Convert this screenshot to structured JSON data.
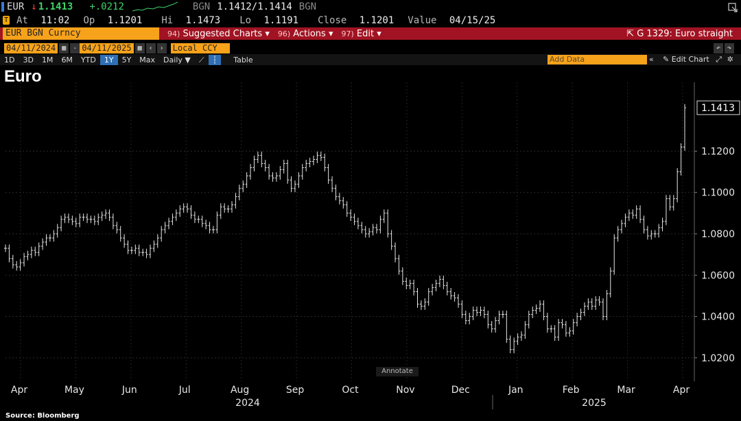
{
  "ticker": {
    "symbol": "EUR",
    "last": "1.1413",
    "change": "+.0212",
    "source": "BGN",
    "bid_ask": "1.1412/1.1414",
    "source2": "BGN"
  },
  "quote": {
    "at_label": "At",
    "at": "11:02",
    "op_label": "Op",
    "op": "1.1201",
    "hi_label": "Hi",
    "hi": "1.1473",
    "lo_label": "Lo",
    "lo": "1.1191",
    "close_label": "Close",
    "close": "1.1201",
    "value_label": "Value",
    "value": "04/15/25"
  },
  "command_bar": {
    "security": "EUR BGN Curncy",
    "menus": [
      {
        "num": "94)",
        "label": "Suggested Charts"
      },
      {
        "num": "96)",
        "label": "Actions"
      },
      {
        "num": "97)",
        "label": "Edit"
      }
    ],
    "chart_title": "G 1329: Euro straight"
  },
  "range": {
    "start": "04/11/2024",
    "end": "04/11/2025",
    "currency": "Local CCY",
    "buttons": [
      "1D",
      "3D",
      "1M",
      "6M",
      "YTD",
      "1Y",
      "5Y",
      "Max"
    ],
    "active": "1Y",
    "frequency": "Daily",
    "table_label": "Table",
    "add_data_placeholder": "Add Data",
    "edit_chart_label": "Edit Chart"
  },
  "colors": {
    "accent": "#f7a21b",
    "bar": "#a11322",
    "series": "#e8e8e8"
  },
  "annotate_label": "Annotate",
  "source": "Source: Bloomberg",
  "chart_data": {
    "type": "line",
    "title": "Euro",
    "ylim": [
      1.01,
      1.15
    ],
    "yticks": [
      "1.0200",
      "1.0400",
      "1.0600",
      "1.0800",
      "1.1000",
      "1.1200"
    ],
    "last_value_label": "1.1413",
    "month_labels": [
      "Apr",
      "May",
      "Jun",
      "Jul",
      "Aug",
      "Sep",
      "Oct",
      "Nov",
      "Dec",
      "Jan",
      "Feb",
      "Mar",
      "Apr"
    ],
    "year_labels": [
      "2024",
      "2025"
    ],
    "grid": true,
    "series": [
      {
        "values": [
          1.073,
          1.068,
          1.065,
          1.064,
          1.066,
          1.069,
          1.07,
          1.072,
          1.071,
          1.074,
          1.076,
          1.078,
          1.078,
          1.08,
          1.083,
          1.087,
          1.088,
          1.087,
          1.086,
          1.085,
          1.088,
          1.088,
          1.087,
          1.087,
          1.086,
          1.088,
          1.089,
          1.09,
          1.088,
          1.084,
          1.082,
          1.078,
          1.075,
          1.072,
          1.072,
          1.073,
          1.071,
          1.071,
          1.07,
          1.073,
          1.075,
          1.078,
          1.082,
          1.084,
          1.086,
          1.088,
          1.09,
          1.092,
          1.093,
          1.092,
          1.089,
          1.087,
          1.087,
          1.085,
          1.084,
          1.082,
          1.082,
          1.089,
          1.093,
          1.092,
          1.092,
          1.094,
          1.098,
          1.102,
          1.104,
          1.108,
          1.112,
          1.116,
          1.118,
          1.114,
          1.112,
          1.108,
          1.107,
          1.108,
          1.111,
          1.114,
          1.106,
          1.102,
          1.104,
          1.108,
          1.112,
          1.114,
          1.115,
          1.116,
          1.118,
          1.117,
          1.112,
          1.106,
          1.102,
          1.098,
          1.096,
          1.094,
          1.09,
          1.088,
          1.086,
          1.084,
          1.082,
          1.08,
          1.081,
          1.083,
          1.082,
          1.087,
          1.09,
          1.08,
          1.074,
          1.068,
          1.062,
          1.057,
          1.055,
          1.056,
          1.052,
          1.046,
          1.045,
          1.047,
          1.052,
          1.054,
          1.056,
          1.058,
          1.055,
          1.052,
          1.05,
          1.049,
          1.046,
          1.041,
          1.038,
          1.04,
          1.043,
          1.042,
          1.043,
          1.041,
          1.036,
          1.034,
          1.038,
          1.041,
          1.041,
          1.029,
          1.024,
          1.028,
          1.03,
          1.031,
          1.036,
          1.041,
          1.043,
          1.044,
          1.046,
          1.04,
          1.034,
          1.034,
          1.03,
          1.037,
          1.036,
          1.032,
          1.033,
          1.037,
          1.04,
          1.042,
          1.045,
          1.047,
          1.045,
          1.048,
          1.047,
          1.04,
          1.051,
          1.062,
          1.078,
          1.082,
          1.085,
          1.088,
          1.09,
          1.089,
          1.092,
          1.087,
          1.082,
          1.079,
          1.08,
          1.08,
          1.083,
          1.086,
          1.097,
          1.093,
          1.097,
          1.11,
          1.122,
          1.141
        ]
      }
    ]
  }
}
